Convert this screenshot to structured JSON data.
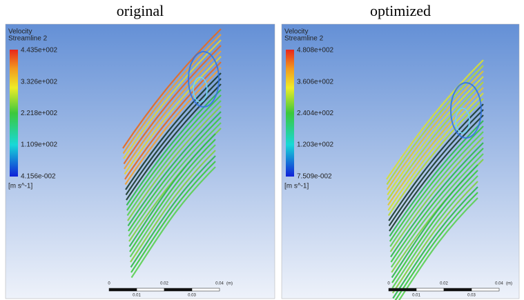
{
  "panels": [
    {
      "title": "original",
      "legend": {
        "title": "Velocity",
        "subtitle": "Streamline 2",
        "labels": [
          "4.435e+002",
          "3.326e+002",
          "2.218e+002",
          "1.109e+002",
          "4.156e-002"
        ],
        "unit": "[m s^-1]"
      },
      "scale": {
        "ticks": [
          "0",
          "0.02",
          "0.04"
        ],
        "unit": "(m)",
        "sublabels": [
          "0.01",
          "0.03"
        ]
      }
    },
    {
      "title": "optimized",
      "legend": {
        "title": "Velocity",
        "subtitle": "Streamline 2",
        "labels": [
          "4.808e+002",
          "3.606e+002",
          "2.404e+002",
          "1.203e+002",
          "7.509e-002"
        ],
        "unit": "[m s^-1]"
      },
      "scale": {
        "ticks": [
          "0",
          "0.02",
          "0.04"
        ],
        "unit": "(m)",
        "sublabels": [
          "0.01",
          "0.03"
        ]
      }
    }
  ]
}
